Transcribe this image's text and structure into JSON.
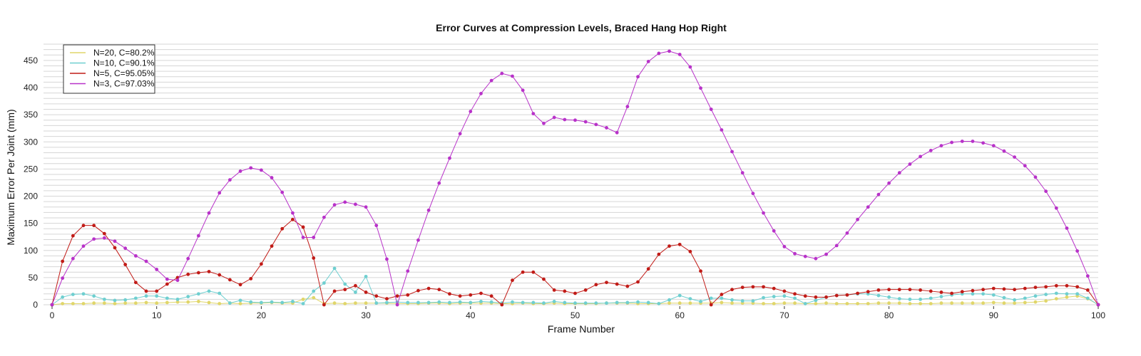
{
  "chart_data": {
    "type": "line",
    "title": "Error Curves at Compression Levels, Braced Hang Hop Right",
    "xlabel": "Frame Number",
    "ylabel": "Maximum Error Per Joint (mm)",
    "xlim": [
      0,
      100
    ],
    "ylim": [
      0,
      480
    ],
    "xticks": [
      0,
      10,
      20,
      30,
      40,
      50,
      60,
      70,
      80,
      90,
      100
    ],
    "yticks": [
      0,
      50,
      100,
      150,
      200,
      250,
      300,
      350,
      400,
      450
    ],
    "grid": "horizontal",
    "legend_position": "top-left",
    "series": [
      {
        "name": "N=20, C=80.2%",
        "color": "#e0d66a",
        "values": [
          0,
          2,
          2,
          2,
          3,
          3,
          2,
          3,
          3,
          4,
          3,
          4,
          5,
          5,
          6,
          4,
          2,
          3,
          2,
          3,
          3,
          4,
          3,
          3,
          10,
          13,
          2,
          3,
          2,
          3,
          3,
          3,
          3,
          2,
          2,
          2,
          3,
          3,
          2,
          3,
          3,
          3,
          3,
          2,
          2,
          3,
          2,
          2,
          3,
          2,
          2,
          2,
          2,
          3,
          3,
          3,
          2,
          2,
          2,
          3,
          3,
          3,
          3,
          3,
          4,
          3,
          3,
          3,
          2,
          2,
          3,
          3,
          2,
          2,
          3,
          2,
          2,
          2,
          2,
          3,
          3,
          3,
          2,
          2,
          2,
          3,
          3,
          3,
          3,
          3,
          4,
          3,
          3,
          4,
          5,
          7,
          11,
          14,
          16,
          11,
          0
        ]
      },
      {
        "name": "N=10, C=90.1%",
        "color": "#6fcfd0",
        "values": [
          0,
          14,
          19,
          20,
          16,
          10,
          8,
          9,
          12,
          16,
          16,
          12,
          10,
          15,
          20,
          25,
          21,
          3,
          8,
          5,
          4,
          5,
          4,
          6,
          2,
          25,
          40,
          67,
          38,
          23,
          52,
          3,
          4,
          5,
          4,
          4,
          4,
          5,
          4,
          5,
          4,
          6,
          5,
          3,
          5,
          4,
          4,
          3,
          6,
          4,
          3,
          3,
          3,
          3,
          4,
          4,
          5,
          4,
          2,
          9,
          17,
          11,
          6,
          12,
          12,
          9,
          7,
          7,
          13,
          15,
          16,
          12,
          2,
          8,
          14,
          17,
          18,
          20,
          20,
          17,
          14,
          11,
          10,
          10,
          12,
          15,
          18,
          20,
          20,
          20,
          18,
          13,
          9,
          12,
          16,
          19,
          21,
          20,
          20,
          12,
          0
        ]
      },
      {
        "name": "N=5, C=95.05%",
        "color": "#c11b17",
        "values": [
          0,
          80,
          127,
          146,
          146,
          131,
          105,
          74,
          41,
          25,
          25,
          38,
          50,
          56,
          59,
          61,
          55,
          46,
          37,
          48,
          75,
          108,
          140,
          157,
          143,
          86,
          0,
          25,
          28,
          35,
          23,
          16,
          11,
          16,
          18,
          26,
          30,
          28,
          20,
          16,
          18,
          21,
          16,
          0,
          45,
          60,
          60,
          47,
          27,
          25,
          21,
          27,
          37,
          41,
          38,
          34,
          42,
          66,
          93,
          108,
          111,
          98,
          62,
          0,
          19,
          28,
          32,
          33,
          33,
          30,
          25,
          20,
          16,
          14,
          14,
          17,
          18,
          21,
          24,
          27,
          28,
          28,
          28,
          27,
          25,
          23,
          21,
          24,
          26,
          28,
          30,
          29,
          28,
          30,
          32,
          33,
          35,
          35,
          33,
          27,
          0
        ]
      },
      {
        "name": "N=3, C=97.03%",
        "color": "#b832c9",
        "values": [
          0,
          49,
          85,
          108,
          121,
          123,
          117,
          104,
          90,
          80,
          65,
          47,
          45,
          85,
          127,
          169,
          206,
          230,
          246,
          252,
          248,
          234,
          207,
          169,
          124,
          124,
          161,
          184,
          189,
          185,
          180,
          146,
          84,
          0,
          62,
          119,
          174,
          224,
          270,
          315,
          356,
          389,
          413,
          426,
          421,
          395,
          352,
          334,
          345,
          341,
          340,
          337,
          332,
          326,
          317,
          365,
          420,
          448,
          463,
          467,
          461,
          438,
          399,
          360,
          322,
          282,
          243,
          205,
          169,
          136,
          107,
          94,
          89,
          85,
          93,
          109,
          132,
          157,
          180,
          203,
          224,
          243,
          259,
          273,
          284,
          293,
          299,
          301,
          301,
          298,
          293,
          283,
          272,
          256,
          235,
          209,
          178,
          141,
          99,
          53,
          0
        ]
      }
    ]
  }
}
